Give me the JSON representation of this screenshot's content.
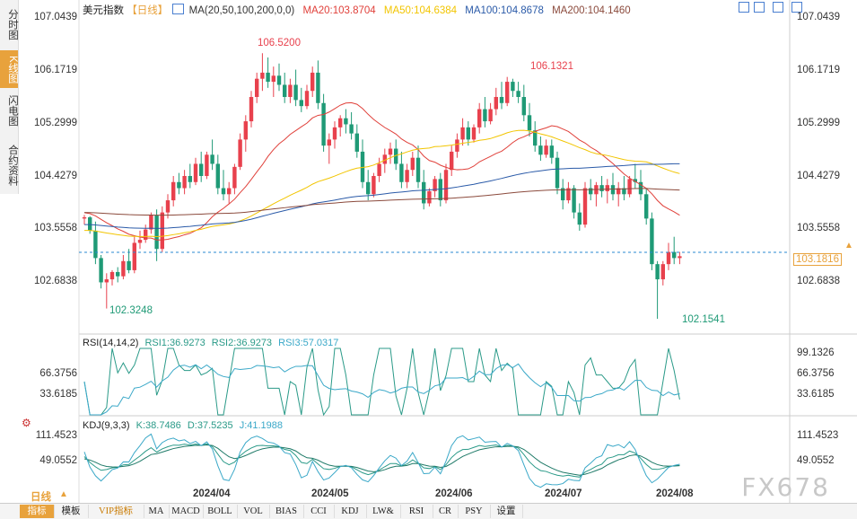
{
  "left_tabs": [
    "分时图",
    "K线图",
    "闪电图",
    "合约资料"
  ],
  "active_tab": 1,
  "header": {
    "symbol": "美元指数",
    "period": "【日线】",
    "ma_label": "MA(20,50,100,200,0,0)",
    "ma20": "MA20:103.8704",
    "ma50": "MA50:104.6384",
    "ma100": "MA100:104.8678",
    "ma200": "MA200:104.1460"
  },
  "rsi_header": {
    "label": "RSI(14,14,2)",
    "rsi1": "RSI1:36.9273",
    "rsi2": "RSI2:36.9273",
    "rsi3": "RSI3:57.0317"
  },
  "kdj_header": {
    "label": "KDJ(9,3,3)",
    "k": "K:38.7486",
    "d": "D:37.5235",
    "j": "J:41.1988"
  },
  "price_axis": [
    "107.0439",
    "106.1719",
    "105.2999",
    "104.4279",
    "103.5558",
    "102.6838"
  ],
  "rsi_axis": [
    "99.1326",
    "66.3756",
    "33.6185"
  ],
  "kdj_axis": [
    "111.4523",
    "49.0552"
  ],
  "current_price": "103.1816",
  "annotations": {
    "high1": "106.5200",
    "high2": "106.1321",
    "low1": "102.3248",
    "low2": "102.1541"
  },
  "x_axis": [
    "2024/04",
    "2024/05",
    "2024/06",
    "2024/07",
    "2024/08"
  ],
  "bottom_bar": {
    "period": "日线",
    "buttons": [
      "指标",
      "模板",
      "VIP指标",
      "MA",
      "MACD",
      "BOLL",
      "VOL",
      "BIAS",
      "CCI",
      "KDJ",
      "LW&",
      "RSI",
      "CR",
      "PSY",
      "设置"
    ]
  },
  "watermark": "FX678",
  "colors": {
    "up": "#e8414d",
    "down": "#1f9a76",
    "ma20": "#e0403a",
    "ma50": "#f2c500",
    "ma100": "#2a5aa8",
    "ma200": "#8b4a3c"
  },
  "chart_data": {
    "type": "candlestick",
    "ylim": [
      101.9,
      107.1
    ],
    "candles": [
      [
        103.8,
        103.86,
        103.7,
        103.82
      ],
      [
        103.82,
        103.84,
        103.55,
        103.6
      ],
      [
        103.6,
        103.75,
        103.05,
        103.15
      ],
      [
        103.15,
        103.2,
        102.65,
        102.75
      ],
      [
        102.75,
        102.9,
        102.32,
        102.8
      ],
      [
        102.8,
        102.95,
        102.7,
        102.92
      ],
      [
        102.92,
        103.0,
        102.75,
        102.85
      ],
      [
        102.85,
        103.2,
        102.8,
        103.1
      ],
      [
        103.1,
        103.3,
        102.9,
        102.95
      ],
      [
        102.95,
        103.5,
        102.9,
        103.4
      ],
      [
        103.4,
        103.6,
        103.3,
        103.45
      ],
      [
        103.45,
        103.7,
        103.4,
        103.62
      ],
      [
        103.62,
        103.9,
        103.55,
        103.85
      ],
      [
        103.85,
        103.95,
        103.1,
        103.3
      ],
      [
        103.3,
        104.0,
        103.25,
        103.9
      ],
      [
        103.9,
        104.2,
        103.8,
        104.1
      ],
      [
        104.1,
        104.5,
        104.0,
        104.4
      ],
      [
        104.4,
        104.55,
        104.2,
        104.3
      ],
      [
        104.3,
        104.6,
        104.2,
        104.5
      ],
      [
        104.5,
        104.7,
        104.3,
        104.4
      ],
      [
        104.4,
        104.8,
        104.35,
        104.7
      ],
      [
        104.7,
        104.9,
        104.4,
        104.5
      ],
      [
        104.5,
        104.9,
        104.45,
        104.85
      ],
      [
        104.85,
        105.1,
        104.6,
        104.7
      ],
      [
        104.7,
        104.85,
        104.2,
        104.3
      ],
      [
        104.3,
        104.6,
        104.1,
        104.2
      ],
      [
        104.2,
        104.4,
        104.05,
        104.3
      ],
      [
        104.3,
        104.7,
        104.2,
        104.65
      ],
      [
        104.65,
        105.2,
        104.6,
        105.1
      ],
      [
        105.1,
        105.5,
        104.9,
        105.4
      ],
      [
        105.4,
        105.9,
        105.3,
        105.8
      ],
      [
        105.8,
        106.2,
        105.7,
        106.1
      ],
      [
        106.1,
        106.52,
        105.9,
        106.2
      ],
      [
        106.2,
        106.45,
        105.95,
        106.05
      ],
      [
        106.05,
        106.3,
        105.8,
        106.15
      ],
      [
        106.15,
        106.35,
        105.9,
        106.0
      ],
      [
        106.0,
        106.2,
        105.7,
        105.8
      ],
      [
        105.8,
        106.1,
        105.7,
        106.0
      ],
      [
        106.0,
        106.25,
        105.65,
        105.75
      ],
      [
        105.75,
        105.95,
        105.55,
        105.65
      ],
      [
        105.65,
        106.0,
        105.6,
        105.9
      ],
      [
        105.9,
        106.3,
        105.8,
        106.2
      ],
      [
        106.2,
        106.4,
        105.6,
        105.7
      ],
      [
        105.7,
        105.85,
        104.9,
        105.0
      ],
      [
        105.0,
        105.2,
        104.7,
        105.1
      ],
      [
        105.1,
        105.4,
        104.95,
        105.3
      ],
      [
        105.3,
        105.5,
        105.15,
        105.45
      ],
      [
        105.45,
        105.6,
        105.2,
        105.35
      ],
      [
        105.35,
        105.55,
        105.1,
        105.2
      ],
      [
        105.2,
        105.35,
        104.8,
        104.9
      ],
      [
        104.9,
        105.1,
        104.3,
        104.4
      ],
      [
        104.4,
        104.6,
        104.1,
        104.2
      ],
      [
        104.2,
        104.55,
        104.15,
        104.5
      ],
      [
        104.5,
        104.8,
        104.4,
        104.7
      ],
      [
        104.7,
        104.95,
        104.55,
        104.85
      ],
      [
        104.85,
        105.05,
        104.7,
        104.95
      ],
      [
        104.95,
        105.1,
        104.6,
        104.7
      ],
      [
        104.7,
        104.9,
        104.3,
        104.4
      ],
      [
        104.4,
        104.7,
        104.3,
        104.6
      ],
      [
        104.6,
        104.9,
        104.5,
        104.8
      ],
      [
        104.8,
        105.0,
        104.3,
        104.4
      ],
      [
        104.4,
        104.6,
        103.95,
        104.05
      ],
      [
        104.05,
        104.3,
        104.0,
        104.25
      ],
      [
        104.25,
        104.5,
        104.15,
        104.45
      ],
      [
        104.45,
        104.55,
        104.0,
        104.1
      ],
      [
        104.1,
        104.7,
        104.05,
        104.6
      ],
      [
        104.6,
        105.0,
        104.5,
        104.9
      ],
      [
        104.9,
        105.2,
        104.8,
        105.1
      ],
      [
        105.1,
        105.45,
        105.0,
        105.3
      ],
      [
        105.3,
        105.4,
        105.0,
        105.1
      ],
      [
        105.1,
        105.35,
        105.05,
        105.3
      ],
      [
        105.3,
        105.7,
        105.2,
        105.6
      ],
      [
        105.6,
        105.8,
        105.3,
        105.4
      ],
      [
        105.4,
        105.7,
        105.35,
        105.6
      ],
      [
        105.6,
        105.95,
        105.5,
        105.8
      ],
      [
        105.8,
        106.05,
        105.6,
        105.7
      ],
      [
        105.7,
        106.13,
        105.65,
        106.05
      ],
      [
        106.05,
        106.1,
        105.8,
        105.9
      ],
      [
        105.9,
        106.05,
        105.7,
        105.8
      ],
      [
        105.8,
        106.0,
        105.4,
        105.5
      ],
      [
        105.5,
        105.7,
        105.15,
        105.25
      ],
      [
        105.25,
        105.4,
        104.9,
        105.0
      ],
      [
        105.0,
        105.15,
        104.75,
        104.85
      ],
      [
        104.85,
        105.1,
        104.8,
        105.0
      ],
      [
        105.0,
        105.1,
        104.7,
        104.8
      ],
      [
        104.8,
        104.9,
        104.2,
        104.3
      ],
      [
        104.3,
        104.45,
        103.95,
        104.1
      ],
      [
        104.1,
        104.4,
        104.05,
        104.3
      ],
      [
        104.3,
        104.35,
        103.8,
        103.9
      ],
      [
        103.9,
        104.05,
        103.6,
        103.7
      ],
      [
        103.7,
        104.4,
        103.65,
        104.3
      ],
      [
        104.3,
        104.45,
        104.1,
        104.2
      ],
      [
        104.2,
        104.4,
        104.0,
        104.35
      ],
      [
        104.35,
        104.5,
        104.15,
        104.25
      ],
      [
        104.25,
        104.45,
        104.05,
        104.35
      ],
      [
        104.35,
        104.55,
        104.1,
        104.2
      ],
      [
        104.2,
        104.4,
        104.0,
        104.3
      ],
      [
        104.3,
        104.5,
        104.1,
        104.2
      ],
      [
        104.2,
        104.5,
        104.15,
        104.45
      ],
      [
        104.45,
        104.7,
        104.3,
        104.4
      ],
      [
        104.4,
        104.6,
        104.1,
        104.2
      ],
      [
        104.2,
        104.3,
        103.7,
        103.8
      ],
      [
        103.8,
        103.9,
        102.95,
        103.05
      ],
      [
        103.05,
        103.1,
        102.15,
        102.8
      ],
      [
        102.8,
        103.1,
        102.7,
        103.05
      ],
      [
        103.05,
        103.4,
        102.95,
        103.25
      ],
      [
        103.25,
        103.5,
        103.05,
        103.15
      ],
      [
        103.15,
        103.25,
        103.05,
        103.18
      ]
    ]
  }
}
